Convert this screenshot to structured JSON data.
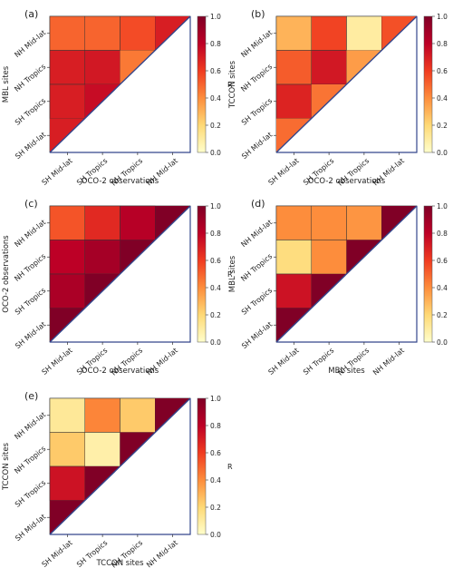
{
  "figure": {
    "colorscale": {
      "stops": [
        "#fffecb",
        "#fed976",
        "#fd8d3c",
        "#f03b20",
        "#bd0026",
        "#800026"
      ],
      "grid_color": "#333333",
      "diagonal_color": "#34468c",
      "label": "R",
      "ticks": [
        "0.0",
        "0.2",
        "0.4",
        "0.6",
        "0.8",
        "1.0"
      ]
    }
  },
  "chart_data": [
    {
      "type": "heatmap",
      "panel_label": "(a)",
      "xlabel": "OCO-2 observations",
      "ylabel": "MBL sites",
      "x_categories": [
        "SH Mid-lat",
        "SH Tropics",
        "NH Tropics",
        "NH Mid-lat"
      ],
      "y_categories": [
        "NH Mid-lat",
        "NH Tropics",
        "SH Tropics",
        "SH Mid-lat"
      ],
      "values": [
        [
          0.5,
          0.5,
          0.56,
          0.7
        ],
        [
          0.7,
          0.72,
          0.45,
          null
        ],
        [
          0.7,
          0.76,
          null,
          null
        ],
        [
          0.7,
          null,
          null,
          null
        ]
      ],
      "clim": [
        0,
        1
      ]
    },
    {
      "type": "heatmap",
      "panel_label": "(b)",
      "xlabel": "OCO-2 observations",
      "ylabel": "TCCON sites",
      "x_categories": [
        "SH Mid-lat",
        "SH Tropics",
        "NH Tropics",
        "NH Mid-lat"
      ],
      "y_categories": [
        "NH Mid-lat",
        "NH Tropics",
        "SH Tropics",
        "SH Mid-lat"
      ],
      "values": [
        [
          0.3,
          0.58,
          0.1,
          0.55
        ],
        [
          0.52,
          0.72,
          0.36,
          null
        ],
        [
          0.68,
          0.46,
          null,
          null
        ],
        [
          0.48,
          null,
          null,
          null
        ]
      ],
      "clim": [
        0,
        1
      ]
    },
    {
      "type": "heatmap",
      "panel_label": "(c)",
      "xlabel": "OCO-2 observations",
      "ylabel": "OCO-2 observations",
      "x_categories": [
        "SH Mid-lat",
        "SH Tropics",
        "NH Tropics",
        "NH Mid-lat"
      ],
      "y_categories": [
        "NH Mid-lat",
        "NH Tropics",
        "SH Tropics",
        "SH Mid-lat"
      ],
      "values": [
        [
          0.54,
          0.66,
          0.82,
          1.0
        ],
        [
          0.8,
          0.88,
          1.0,
          null
        ],
        [
          0.86,
          1.0,
          null,
          null
        ],
        [
          1.0,
          null,
          null,
          null
        ]
      ],
      "clim": [
        0,
        1
      ]
    },
    {
      "type": "heatmap",
      "panel_label": "(d)",
      "xlabel": "MBL sites",
      "ylabel": "MBL sites",
      "x_categories": [
        "SH Mid-lat",
        "SH Tropics",
        "NH Tropics",
        "NH Mid-lat"
      ],
      "y_categories": [
        "NH Mid-lat",
        "NH Tropics",
        "SH Tropics",
        "SH Mid-lat"
      ],
      "values": [
        [
          0.4,
          0.4,
          0.38,
          1.0
        ],
        [
          0.18,
          0.4,
          1.0,
          null
        ],
        [
          0.74,
          1.0,
          null,
          null
        ],
        [
          1.0,
          null,
          null,
          null
        ]
      ],
      "clim": [
        0,
        1
      ]
    },
    {
      "type": "heatmap",
      "panel_label": "(e)",
      "xlabel": "TCCON sites",
      "ylabel": "TCCON sites",
      "x_categories": [
        "SH Mid-lat",
        "SH Tropics",
        "NH Tropics",
        "NH Mid-lat"
      ],
      "y_categories": [
        "NH Mid-lat",
        "NH Tropics",
        "SH Tropics",
        "SH Mid-lat"
      ],
      "values": [
        [
          0.12,
          0.42,
          0.24,
          1.0
        ],
        [
          0.24,
          0.08,
          1.0,
          null
        ],
        [
          0.74,
          1.0,
          null,
          null
        ],
        [
          1.0,
          null,
          null,
          null
        ]
      ],
      "clim": [
        0,
        1
      ]
    }
  ]
}
